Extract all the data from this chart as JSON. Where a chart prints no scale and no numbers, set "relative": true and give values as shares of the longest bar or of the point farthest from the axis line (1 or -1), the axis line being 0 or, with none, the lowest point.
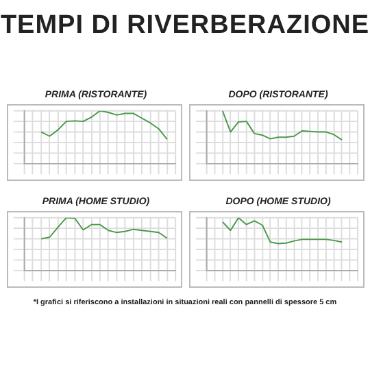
{
  "chart_data": [
    {
      "type": "line",
      "title": "TEMPI DI RIVERBERAZIONE",
      "subtitle": "PRIMA (RISTORANTE)",
      "relative": true,
      "grid": true,
      "tick_labels": false,
      "marker": "none",
      "categories": [
        null,
        null,
        null,
        null,
        null,
        null,
        null,
        null,
        null,
        null,
        null,
        null,
        null,
        null,
        null,
        null,
        null,
        null,
        null
      ],
      "series": [
        {
          "color": "#4a9a4a",
          "values": [
            null,
            null,
            0.6,
            0.52,
            0.64,
            0.8,
            0.81,
            0.8,
            0.88,
            1,
            0.97,
            0.92,
            0.95,
            0.95,
            0.86,
            0.77,
            0.66,
            0.46,
            null
          ]
        }
      ]
    },
    {
      "type": "line",
      "subtitle": "DOPO (RISTORANTE)",
      "relative": true,
      "grid": true,
      "tick_labels": false,
      "marker": "none",
      "categories": [
        null,
        null,
        null,
        null,
        null,
        null,
        null,
        null,
        null,
        null,
        null,
        null,
        null,
        null,
        null,
        null,
        null,
        null,
        null,
        null
      ],
      "series": [
        {
          "color": "#4a9a4a",
          "values": [
            null,
            null,
            1,
            0.6,
            0.79,
            0.8,
            0.57,
            0.54,
            0.47,
            0.5,
            0.5,
            0.52,
            0.62,
            0.61,
            0.6,
            0.6,
            0.55,
            0.45,
            null,
            null
          ]
        }
      ]
    },
    {
      "type": "line",
      "subtitle": "PRIMA (HOME STUDIO)",
      "relative": true,
      "grid": true,
      "tick_labels": false,
      "marker": "none",
      "categories": [
        null,
        null,
        null,
        null,
        null,
        null,
        null,
        null,
        null,
        null,
        null,
        null,
        null,
        null,
        null,
        null,
        null,
        null,
        null
      ],
      "series": [
        {
          "color": "#4a9a4a",
          "values": [
            null,
            null,
            0.6,
            0.63,
            0.82,
            1,
            0.99,
            0.77,
            0.87,
            0.87,
            0.76,
            0.72,
            0.74,
            0.78,
            0.76,
            0.74,
            0.72,
            0.61,
            null
          ]
        }
      ]
    },
    {
      "type": "line",
      "subtitle": "DOPO (HOME STUDIO)",
      "relative": true,
      "grid": true,
      "tick_labels": false,
      "marker": "none",
      "categories": [
        null,
        null,
        null,
        null,
        null,
        null,
        null,
        null,
        null,
        null,
        null,
        null,
        null,
        null,
        null,
        null,
        null,
        null,
        null,
        null
      ],
      "series": [
        {
          "color": "#4a9a4a",
          "values": [
            null,
            null,
            0.92,
            0.76,
            1,
            0.87,
            0.94,
            0.86,
            0.54,
            0.51,
            0.52,
            0.56,
            0.59,
            0.59,
            0.59,
            0.59,
            0.57,
            0.54,
            null,
            null
          ]
        }
      ],
      "annotations": [
        "*I grafici si riferiscono a installazioni in situazioni reali con pannelli di spessore 5 cm"
      ]
    }
  ]
}
